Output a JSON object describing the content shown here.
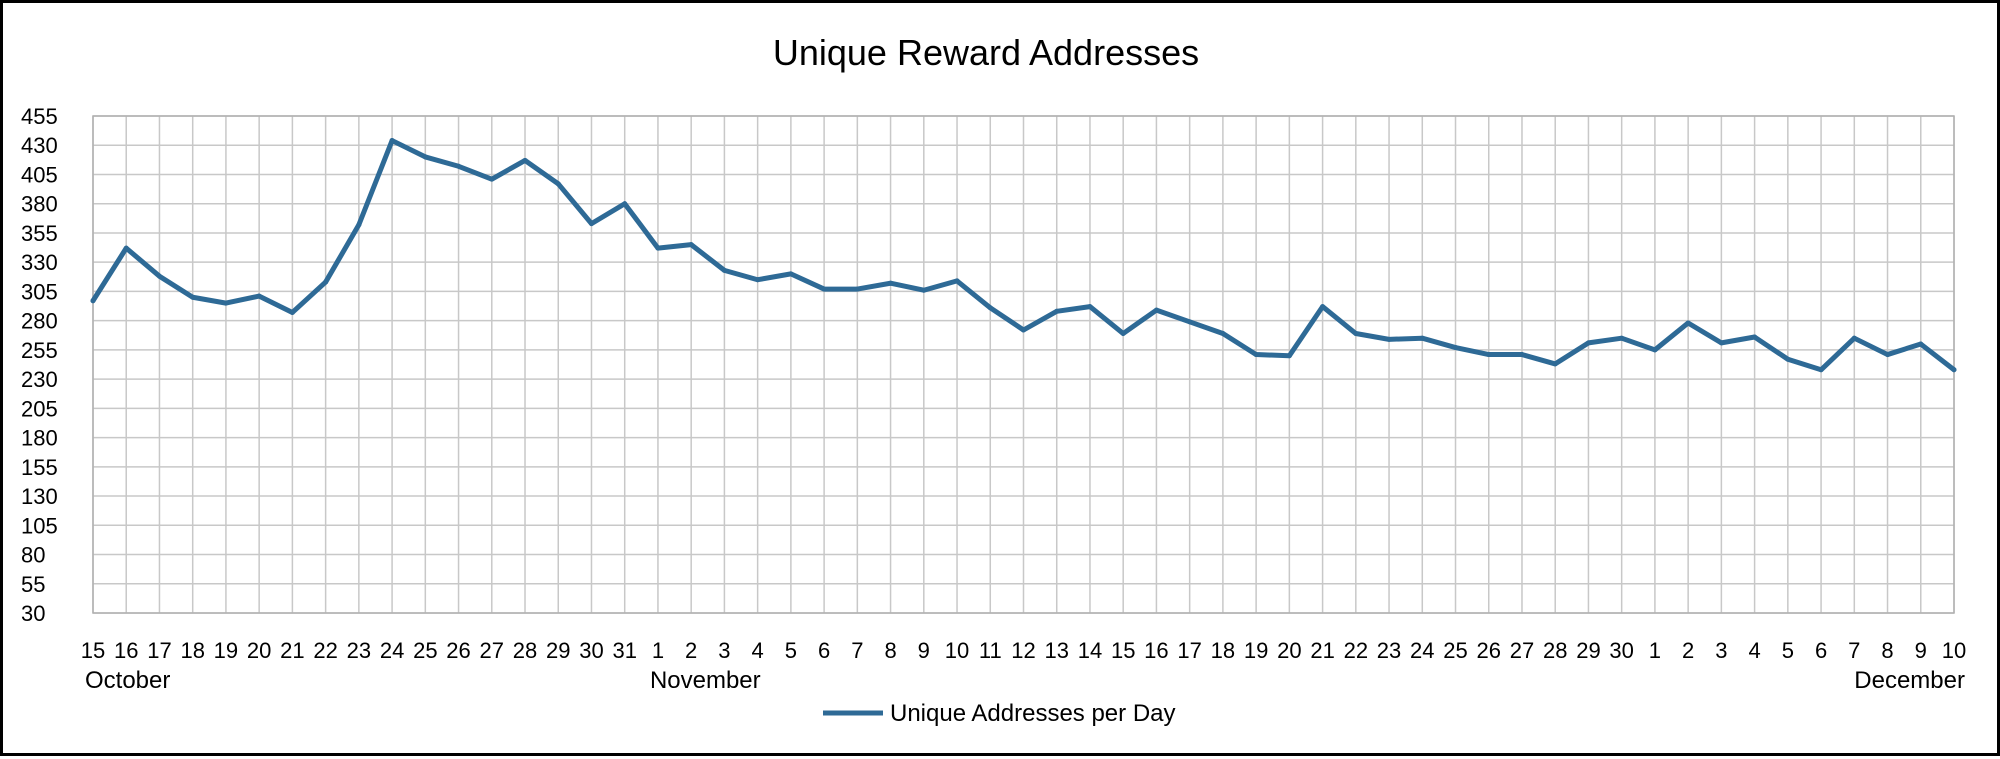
{
  "chart_data": {
    "type": "line",
    "title": "Unique Reward Addresses",
    "xlabel": "",
    "ylabel": "",
    "ylim": [
      30,
      455
    ],
    "yticks": [
      30,
      55,
      80,
      105,
      130,
      155,
      180,
      205,
      230,
      255,
      280,
      305,
      330,
      355,
      380,
      405,
      430,
      455
    ],
    "grid": true,
    "legend_position": "bottom",
    "line_color": "#2e6a96",
    "categories": [
      "15",
      "16",
      "17",
      "18",
      "19",
      "20",
      "21",
      "22",
      "23",
      "24",
      "25",
      "26",
      "27",
      "28",
      "29",
      "30",
      "31",
      "1",
      "2",
      "3",
      "4",
      "5",
      "6",
      "7",
      "8",
      "9",
      "10",
      "11",
      "12",
      "13",
      "14",
      "15",
      "16",
      "17",
      "18",
      "19",
      "20",
      "21",
      "22",
      "23",
      "24",
      "25",
      "26",
      "27",
      "28",
      "29",
      "30",
      "1",
      "2",
      "3",
      "4",
      "5",
      "6",
      "7",
      "8",
      "9",
      "10"
    ],
    "month_labels": [
      {
        "label": "October",
        "index": 0
      },
      {
        "label": "November",
        "index": 17
      },
      {
        "label": "December",
        "index": 56
      }
    ],
    "series": [
      {
        "name": "Unique Addresses per Day",
        "values": [
          297,
          342,
          318,
          300,
          295,
          301,
          287,
          313,
          362,
          434,
          420,
          412,
          401,
          417,
          397,
          363,
          380,
          342,
          345,
          323,
          315,
          320,
          307,
          307,
          312,
          306,
          314,
          291,
          272,
          288,
          292,
          269,
          289,
          279,
          269,
          251,
          250,
          292,
          269,
          264,
          265,
          257,
          251,
          251,
          243,
          261,
          265,
          255,
          278,
          261,
          266,
          247,
          238,
          265,
          251,
          260,
          238
        ]
      }
    ]
  }
}
